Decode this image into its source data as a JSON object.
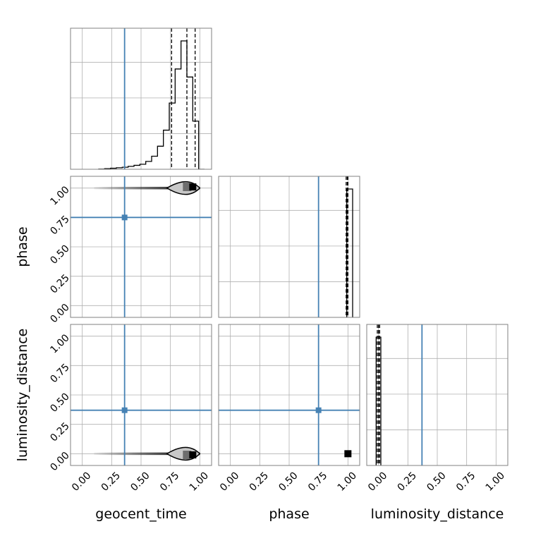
{
  "chart_data": {
    "type": "corner",
    "parameters": [
      "geocent_time",
      "phase",
      "luminosity_distance"
    ],
    "truths": [
      0.36,
      0.75,
      0.37
    ],
    "truth_color": "#4682b4",
    "grid": true,
    "axis_ranges": {
      "geocent_time": [
        -0.1,
        1.1
      ],
      "phase": [
        -0.1,
        1.1
      ],
      "luminosity_distance": [
        -0.1,
        1.1
      ]
    },
    "tick_labels": [
      "0.00",
      "0.25",
      "0.50",
      "0.75",
      "1.00"
    ],
    "tick_values": [
      0,
      0.25,
      0.5,
      0.75,
      1.0
    ],
    "histograms": {
      "geocent_time": {
        "bin_edges": [
          0.14,
          0.19,
          0.24,
          0.29,
          0.34,
          0.39,
          0.44,
          0.49,
          0.54,
          0.59,
          0.64,
          0.69,
          0.74,
          0.79,
          0.84,
          0.89,
          0.94,
          0.99,
          1.04
        ],
        "counts": [
          0.2,
          0.6,
          1.0,
          1.5,
          2.0,
          2.9,
          3.9,
          5.0,
          7.8,
          13.0,
          23.0,
          39.0,
          66.0,
          100.0,
          128.0,
          92.0,
          48.0,
          0.0
        ],
        "quantiles": [
          0.76,
          0.89,
          0.96
        ]
      },
      "phase": {
        "bin_edges": [
          0.98,
          0.99,
          1.0,
          1.01,
          1.02,
          1.04
        ],
        "counts": [
          0.0,
          100.0,
          100.0,
          100.0,
          100.0
        ],
        "quantiles": [
          0.985,
          0.995,
          1.0
        ]
      },
      "luminosity_distance": {
        "bin_edges": [
          -0.02,
          -0.01,
          0.0,
          0.01,
          0.02
        ],
        "counts": [
          100.0,
          100.0,
          100.0,
          100.0
        ],
        "quantiles": [
          -0.01,
          0.0,
          0.01
        ]
      }
    },
    "pair_panels": [
      {
        "x": "geocent_time",
        "y": "phase",
        "sample_range_x": [
          0.1,
          1.0
        ],
        "sample_y": 1.0,
        "mode": [
          0.94,
          1.01
        ],
        "contour_x": [
          0.72,
          1.0
        ]
      },
      {
        "x": "geocent_time",
        "y": "luminosity_distance",
        "sample_range_x": [
          0.1,
          1.0
        ],
        "sample_y": 0.0,
        "mode": [
          0.94,
          -0.01
        ],
        "contour_x": [
          0.72,
          1.0
        ]
      },
      {
        "x": "phase",
        "y": "luminosity_distance",
        "mode": [
          1.0,
          0.0
        ]
      }
    ]
  }
}
